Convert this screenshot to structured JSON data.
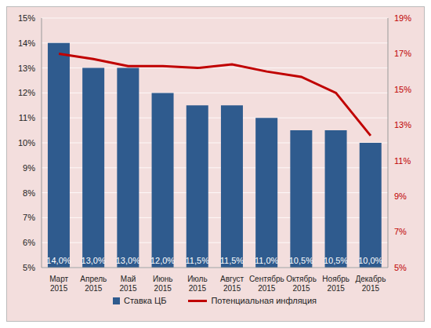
{
  "chart_data": {
    "type": "bar",
    "categories": [
      "Март 2015",
      "Апрель 2015",
      "Май 2015",
      "Июнь 2015",
      "Июль 2015",
      "Август 2015",
      "Сентябрь 2015",
      "Октябрь 2015",
      "Ноябрь 2015",
      "Декабрь 2015"
    ],
    "series": [
      {
        "name": "Ставка ЦБ",
        "type": "bar",
        "color": "#2f5b8e",
        "values": [
          14.0,
          13.0,
          13.0,
          12.0,
          11.5,
          11.5,
          11.0,
          10.5,
          10.5,
          10.0
        ],
        "value_labels": [
          "14,0%",
          "13,0%",
          "13,0%",
          "12,0%",
          "11,5%",
          "11,5%",
          "11,0%",
          "10,5%",
          "10,5%",
          "10,0%"
        ]
      },
      {
        "name": "Потенциальная инфляция",
        "type": "line",
        "color": "#c00000",
        "axis": "y2",
        "values": [
          17.0,
          16.7,
          16.3,
          16.3,
          16.2,
          16.4,
          16.0,
          15.7,
          14.8,
          12.4
        ]
      }
    ],
    "ylim": [
      5,
      15
    ],
    "yticks": [
      {
        "value": 5,
        "label": "5%"
      },
      {
        "value": 6,
        "label": "6%"
      },
      {
        "value": 7,
        "label": "7%"
      },
      {
        "value": 8,
        "label": "8%"
      },
      {
        "value": 9,
        "label": "9%"
      },
      {
        "value": 10,
        "label": "10%"
      },
      {
        "value": 11,
        "label": "11%"
      },
      {
        "value": 12,
        "label": "12%"
      },
      {
        "value": 13,
        "label": "13%"
      },
      {
        "value": 14,
        "label": "14%"
      },
      {
        "value": 15,
        "label": "15%"
      }
    ],
    "y2lim": [
      5,
      19
    ],
    "y2ticks": [
      {
        "value": 5,
        "label": "5%"
      },
      {
        "value": 7,
        "label": "7%"
      },
      {
        "value": 9,
        "label": "9%"
      },
      {
        "value": 11,
        "label": "11%"
      },
      {
        "value": 13,
        "label": "13%"
      },
      {
        "value": 15,
        "label": "15%"
      },
      {
        "value": 17,
        "label": "17%"
      },
      {
        "value": 19,
        "label": "19%"
      }
    ],
    "grid": true,
    "data_labels": true,
    "legend": "bottom"
  }
}
